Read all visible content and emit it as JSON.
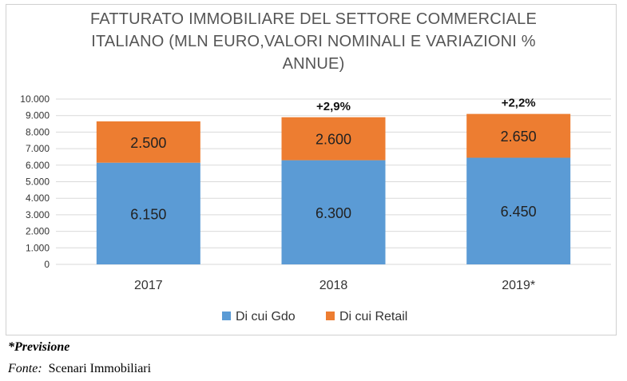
{
  "chart_data": {
    "type": "bar",
    "stacked": true,
    "title_lines": [
      "FATTURATO IMMOBILIARE DEL SETTORE COMMERCIALE",
      "ITALIANO (MLN EURO,VALORI NOMINALI E VARIAZIONI %",
      "ANNUE)"
    ],
    "categories": [
      "2017",
      "2018",
      "2019*"
    ],
    "series": [
      {
        "name": "Di cui Gdo",
        "values": [
          6150,
          6300,
          6450
        ],
        "labels": [
          "6.150",
          "6.300",
          "6.450"
        ],
        "color": "#5b9bd5"
      },
      {
        "name": "Di cui Retail",
        "values": [
          2500,
          2600,
          2650
        ],
        "labels": [
          "2.500",
          "2.600",
          "2.650"
        ],
        "color": "#ed7d31"
      }
    ],
    "annotations": [
      "",
      "+2,9%",
      "+2,2%"
    ],
    "ylim": [
      0,
      10000
    ],
    "yticks": [
      0,
      1000,
      2000,
      3000,
      4000,
      5000,
      6000,
      7000,
      8000,
      9000,
      10000
    ],
    "ytick_labels": [
      "0",
      "1.000",
      "2.000",
      "3.000",
      "4.000",
      "5.000",
      "6.000",
      "7.000",
      "8.000",
      "9.000",
      "10.000"
    ],
    "grid": true,
    "legend_position": "bottom"
  },
  "footnotes": {
    "previsione": "*Previsione",
    "fonte_label": "Fonte:",
    "fonte_source": "Scenari Immobiliari"
  }
}
